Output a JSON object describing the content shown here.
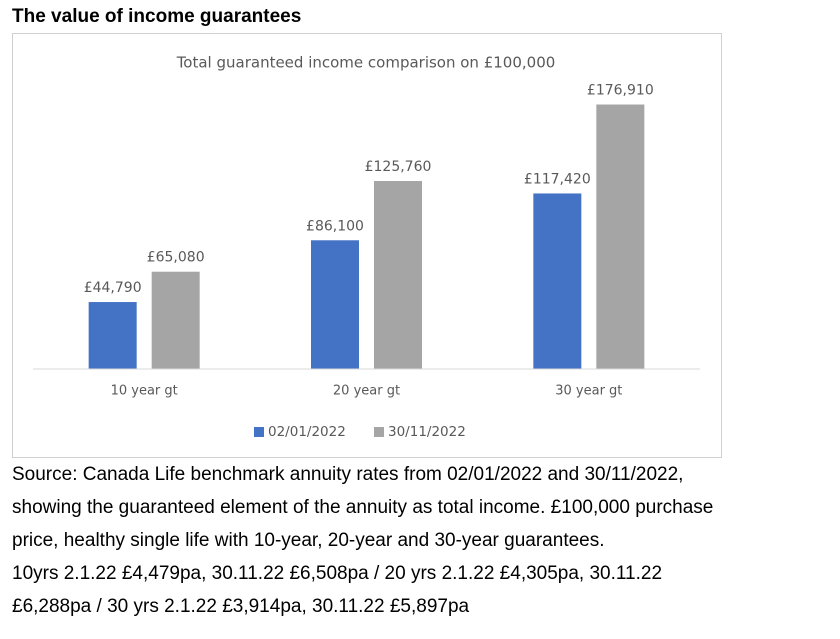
{
  "heading": "The value of income guarantees",
  "chart_data": {
    "type": "bar",
    "title": "Total guaranteed income comparison on £100,000",
    "categories": [
      "10 year gt",
      "20 year gt",
      "30 year gt"
    ],
    "series": [
      {
        "name": "02/01/2022",
        "color": "#4472c4",
        "values": [
          44790,
          86100,
          117420
        ],
        "value_labels": [
          "£44,790",
          "£86,100",
          "£117,420"
        ]
      },
      {
        "name": "30/11/2022",
        "color": "#a5a5a5",
        "values": [
          65080,
          125760,
          176910
        ],
        "value_labels": [
          "£65,080",
          "£125,760",
          "£176,910"
        ]
      }
    ],
    "ylim": [
      0,
      200000
    ],
    "legend": "bottom"
  },
  "source": [
    "Source: Canada Life benchmark annuity rates from 02/01/2022 and 30/11/2022,",
    "showing the guaranteed element of the annuity as total income. £100,000 purchase",
    "price, healthy single life with 10-year, 20-year and 30-year guarantees.",
    "10yrs 2.1.22 £4,479pa, 30.11.22 £6,508pa / 20 yrs 2.1.22 £4,305pa, 30.11.22",
    "£6,288pa / 30 yrs 2.1.22 £3,914pa, 30.11.22 £5,897pa"
  ]
}
